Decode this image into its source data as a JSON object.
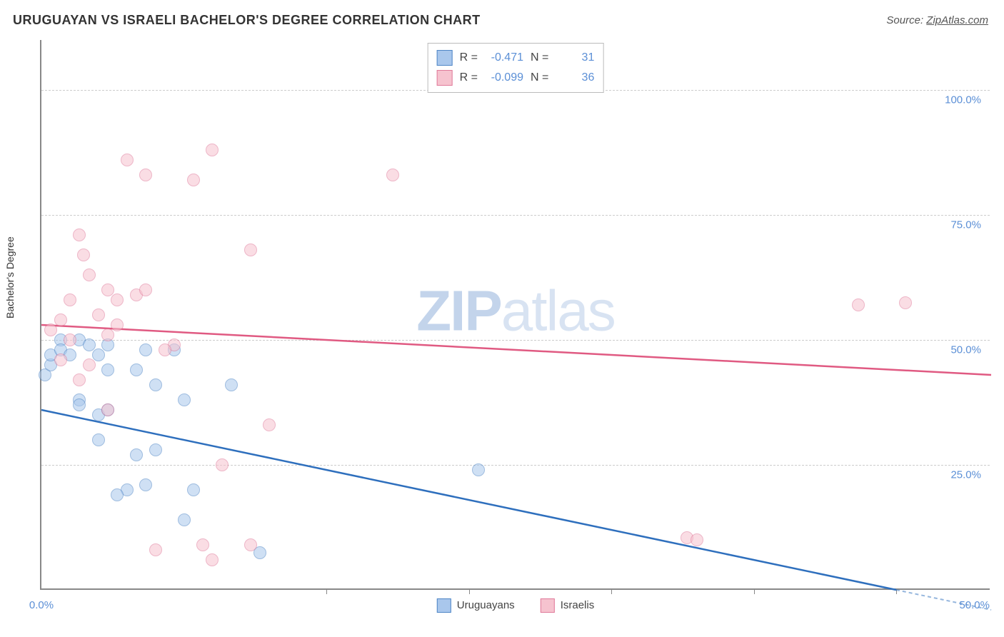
{
  "title": "URUGUAYAN VS ISRAELI BACHELOR'S DEGREE CORRELATION CHART",
  "source_label": "Source: ",
  "source_name": "ZipAtlas.com",
  "ylabel": "Bachelor's Degree",
  "watermark_bold": "ZIP",
  "watermark_rest": "atlas",
  "chart": {
    "type": "scatter",
    "xlim": [
      0,
      50
    ],
    "ylim": [
      0,
      110
    ],
    "yticks": [
      25,
      50,
      75,
      100
    ],
    "ytick_labels": [
      "25.0%",
      "50.0%",
      "75.0%",
      "100.0%"
    ],
    "xticks": [
      0,
      15,
      22.5,
      30,
      37.5,
      45
    ],
    "xtick_labels": [
      "0.0%",
      "",
      "",
      "",
      "",
      ""
    ],
    "xlim_label_right": "50.0%",
    "background_color": "#ffffff",
    "grid_color": "#cccccc",
    "point_radius": 9,
    "point_opacity": 0.55,
    "series": [
      {
        "name": "Uruguayans",
        "fill_color": "#a9c7ec",
        "stroke_color": "#4f86c6",
        "line_color": "#2e6fbd",
        "R": "-0.471",
        "N": "31",
        "trend": {
          "x1": 0,
          "y1": 36,
          "x2": 45,
          "y2": 0
        },
        "trend_dashed_extension": {
          "x1": 45,
          "y1": 0,
          "x2": 50,
          "y2": -4
        },
        "points": [
          [
            0.2,
            43
          ],
          [
            0.5,
            45
          ],
          [
            0.5,
            47
          ],
          [
            1.0,
            50
          ],
          [
            1.0,
            48
          ],
          [
            1.5,
            47
          ],
          [
            2.0,
            50
          ],
          [
            2.5,
            49
          ],
          [
            3.0,
            47
          ],
          [
            3.5,
            49
          ],
          [
            3.5,
            44
          ],
          [
            2.0,
            38
          ],
          [
            2.0,
            37
          ],
          [
            3.0,
            35
          ],
          [
            3.5,
            36
          ],
          [
            3.0,
            30
          ],
          [
            5.0,
            44
          ],
          [
            5.5,
            48
          ],
          [
            6.0,
            41
          ],
          [
            7.0,
            48
          ],
          [
            7.5,
            38
          ],
          [
            10.0,
            41
          ],
          [
            5.0,
            27
          ],
          [
            6.0,
            28
          ],
          [
            4.5,
            20
          ],
          [
            5.5,
            21
          ],
          [
            4.0,
            19
          ],
          [
            8.0,
            20
          ],
          [
            7.5,
            14
          ],
          [
            11.5,
            7.5
          ],
          [
            23.0,
            24
          ]
        ]
      },
      {
        "name": "Israelis",
        "fill_color": "#f6c3cf",
        "stroke_color": "#e07a9a",
        "line_color": "#e05a82",
        "R": "-0.099",
        "N": "36",
        "trend": {
          "x1": 0,
          "y1": 53,
          "x2": 50,
          "y2": 43
        },
        "points": [
          [
            0.5,
            52
          ],
          [
            1.0,
            54
          ],
          [
            1.5,
            58
          ],
          [
            2.0,
            71
          ],
          [
            2.2,
            67
          ],
          [
            2.5,
            63
          ],
          [
            3.0,
            55
          ],
          [
            3.5,
            60
          ],
          [
            4.0,
            58
          ],
          [
            4.5,
            86
          ],
          [
            5.0,
            59
          ],
          [
            5.5,
            60
          ],
          [
            4.0,
            53
          ],
          [
            5.5,
            83
          ],
          [
            7.0,
            49
          ],
          [
            6.5,
            48
          ],
          [
            8.0,
            82
          ],
          [
            9.0,
            88
          ],
          [
            11.0,
            68
          ],
          [
            2.5,
            45
          ],
          [
            3.5,
            51
          ],
          [
            1.0,
            46
          ],
          [
            2.0,
            42
          ],
          [
            3.5,
            36
          ],
          [
            12.0,
            33
          ],
          [
            6.0,
            8
          ],
          [
            8.5,
            9
          ],
          [
            9.5,
            25
          ],
          [
            11.0,
            9
          ],
          [
            9.0,
            6
          ],
          [
            18.5,
            83
          ],
          [
            34.0,
            10.5
          ],
          [
            34.5,
            10
          ],
          [
            43.0,
            57
          ],
          [
            45.5,
            57.5
          ],
          [
            1.5,
            50
          ]
        ]
      }
    ]
  },
  "legend": {
    "series1_label": "Uruguayans",
    "series2_label": "Israelis"
  },
  "stats_labels": {
    "R": "R =",
    "N": "N ="
  }
}
